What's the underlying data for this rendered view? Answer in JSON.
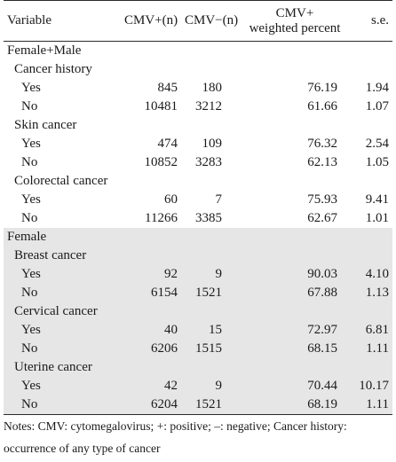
{
  "header": {
    "variable": "Variable",
    "cmv_pos": "CMV+(n)",
    "cmv_neg": "CMV−(n)",
    "weighted_line1": "CMV+",
    "weighted_line2": "weighted percent",
    "se": "s.e."
  },
  "groups": [
    {
      "label": "Female+Male",
      "sections": [
        {
          "label": "Cancer history",
          "rows": [
            {
              "label": "Yes",
              "pos": "845",
              "neg": "180",
              "pct": "76.19",
              "se": "1.94"
            },
            {
              "label": "No",
              "pos": "10481",
              "neg": "3212",
              "pct": "61.66",
              "se": "1.07"
            }
          ]
        },
        {
          "label": "Skin cancer",
          "rows": [
            {
              "label": "Yes",
              "pos": "474",
              "neg": "109",
              "pct": "76.32",
              "se": "2.54"
            },
            {
              "label": "No",
              "pos": "10852",
              "neg": "3283",
              "pct": "62.13",
              "se": "1.05"
            }
          ]
        },
        {
          "label": "Colorectal cancer",
          "rows": [
            {
              "label": "Yes",
              "pos": "60",
              "neg": "7",
              "pct": "75.93",
              "se": "9.41"
            },
            {
              "label": "No",
              "pos": "11266",
              "neg": "3385",
              "pct": "62.67",
              "se": "1.01"
            }
          ]
        }
      ]
    },
    {
      "label": "Female",
      "sections": [
        {
          "label": "Breast cancer",
          "rows": [
            {
              "label": "Yes",
              "pos": "92",
              "neg": "9",
              "pct": "90.03",
              "se": "4.10"
            },
            {
              "label": "No",
              "pos": "6154",
              "neg": "1521",
              "pct": "67.88",
              "se": "1.13"
            }
          ]
        },
        {
          "label": "Cervical cancer",
          "rows": [
            {
              "label": "Yes",
              "pos": "40",
              "neg": "15",
              "pct": "72.97",
              "se": "6.81"
            },
            {
              "label": "No",
              "pos": "6206",
              "neg": "1515",
              "pct": "68.15",
              "se": "1.11"
            }
          ]
        },
        {
          "label": "Uterine cancer",
          "rows": [
            {
              "label": "Yes",
              "pos": "42",
              "neg": "9",
              "pct": "70.44",
              "se": "10.17"
            },
            {
              "label": "No",
              "pos": "6204",
              "neg": "1521",
              "pct": "68.19",
              "se": "1.11"
            }
          ]
        }
      ]
    }
  ],
  "notes": {
    "line1": "Notes: CMV: cytomegalovirus; +: positive; –: negative; Cancer history:",
    "line2": "occurrence of any type of cancer"
  }
}
